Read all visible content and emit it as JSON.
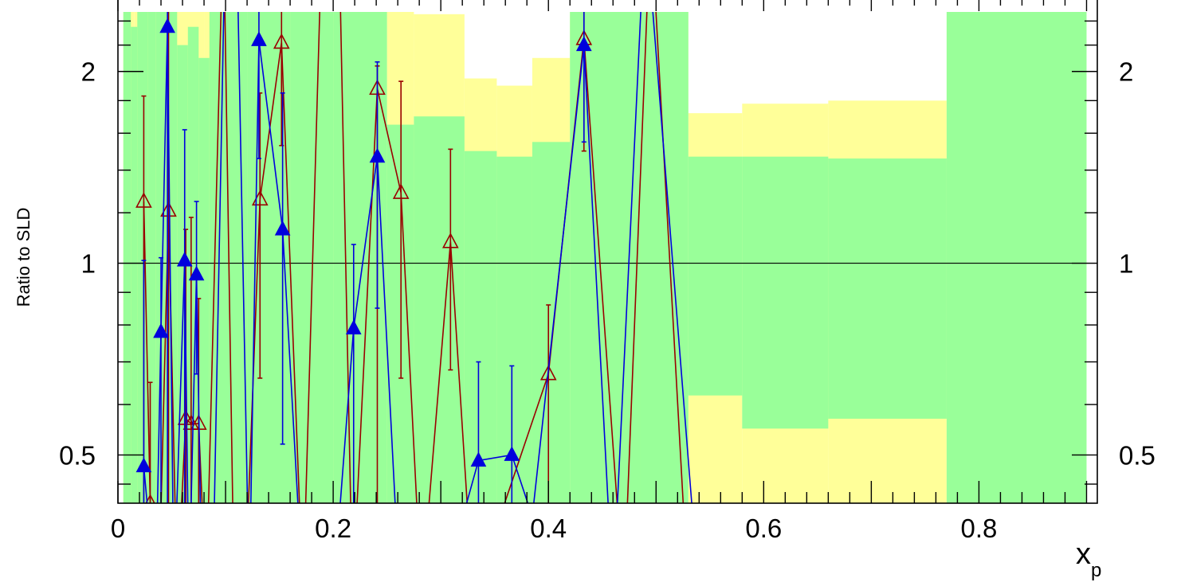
{
  "chart_data": {
    "type": "line",
    "title": "",
    "xlabel": "x",
    "xlabel_sub": "p",
    "ylabel": "Ratio to SLD",
    "xlim": [
      0,
      0.91
    ],
    "ylim": [
      0.42,
      2.48
    ],
    "yscale": "log",
    "x_ticks": [
      "0",
      "0.2",
      "0.4",
      "0.6",
      "0.8"
    ],
    "y_ticks": [
      "0.5",
      "1",
      "2"
    ],
    "reference_line": 1,
    "colors": {
      "band_outer": "#ffff99",
      "band_inner": "#99ff99",
      "series_filled": "#0000dd",
      "series_open": "#990000"
    },
    "bands": {
      "outer": [
        {
          "x0": 0.005,
          "x1": 0.015,
          "lo": 0.3,
          "hi": 3.2
        },
        {
          "x0": 0.015,
          "x1": 0.03,
          "lo": 0.3,
          "hi": 2.6
        },
        {
          "x0": 0.03,
          "x1": 0.05,
          "lo": 0.3,
          "hi": 3.2
        },
        {
          "x0": 0.05,
          "x1": 0.08,
          "lo": 0.3,
          "hi": 3.2
        },
        {
          "x0": 0.08,
          "x1": 0.12,
          "lo": 0.3,
          "hi": 3.2
        },
        {
          "x0": 0.12,
          "x1": 0.16,
          "lo": 0.3,
          "hi": 3.2
        },
        {
          "x0": 0.16,
          "x1": 0.2,
          "lo": 0.3,
          "hi": 3.2
        },
        {
          "x0": 0.2,
          "x1": 0.25,
          "lo": 0.3,
          "hi": 3.2
        },
        {
          "x0": 0.25,
          "x1": 0.275,
          "lo": 0.3,
          "hi": 2.7
        },
        {
          "x0": 0.275,
          "x1": 0.322,
          "lo": 0.3,
          "hi": 2.46
        },
        {
          "x0": 0.322,
          "x1": 0.352,
          "lo": 0.35,
          "hi": 1.95
        },
        {
          "x0": 0.352,
          "x1": 0.385,
          "lo": 0.34,
          "hi": 1.9
        },
        {
          "x0": 0.385,
          "x1": 0.42,
          "lo": 0.3,
          "hi": 2.1
        },
        {
          "x0": 0.42,
          "x1": 0.455,
          "lo": 0.3,
          "hi": 3.2
        },
        {
          "x0": 0.455,
          "x1": 0.485,
          "lo": 0.3,
          "hi": 3.2
        },
        {
          "x0": 0.485,
          "x1": 0.53,
          "lo": 0.3,
          "hi": 3.2
        },
        {
          "x0": 0.53,
          "x1": 0.58,
          "lo": 0.3,
          "hi": 1.72
        },
        {
          "x0": 0.58,
          "x1": 0.66,
          "lo": 0.3,
          "hi": 1.78
        },
        {
          "x0": 0.66,
          "x1": 0.77,
          "lo": 0.3,
          "hi": 1.8
        },
        {
          "x0": 0.77,
          "x1": 0.9,
          "lo": 0.3,
          "hi": 3.2
        }
      ],
      "inner": [
        {
          "x0": 0.005,
          "x1": 0.012,
          "lo": 0.3,
          "hi": 3.2
        },
        {
          "x0": 0.012,
          "x1": 0.018,
          "lo": 0.3,
          "hi": 2.35
        },
        {
          "x0": 0.018,
          "x1": 0.028,
          "lo": 0.3,
          "hi": 3.2
        },
        {
          "x0": 0.028,
          "x1": 0.035,
          "lo": 0.3,
          "hi": 2.5
        },
        {
          "x0": 0.035,
          "x1": 0.045,
          "lo": 0.3,
          "hi": 3.2
        },
        {
          "x0": 0.045,
          "x1": 0.055,
          "lo": 0.3,
          "hi": 3.2
        },
        {
          "x0": 0.055,
          "x1": 0.065,
          "lo": 0.3,
          "hi": 2.2
        },
        {
          "x0": 0.065,
          "x1": 0.075,
          "lo": 0.3,
          "hi": 2.35
        },
        {
          "x0": 0.075,
          "x1": 0.085,
          "lo": 0.3,
          "hi": 2.1
        },
        {
          "x0": 0.085,
          "x1": 0.12,
          "lo": 0.3,
          "hi": 3.2
        },
        {
          "x0": 0.12,
          "x1": 0.16,
          "lo": 0.3,
          "hi": 3.2
        },
        {
          "x0": 0.16,
          "x1": 0.2,
          "lo": 0.3,
          "hi": 3.2
        },
        {
          "x0": 0.2,
          "x1": 0.25,
          "lo": 0.3,
          "hi": 3.2
        },
        {
          "x0": 0.25,
          "x1": 0.275,
          "lo": 0.3,
          "hi": 1.65
        },
        {
          "x0": 0.275,
          "x1": 0.322,
          "lo": 0.3,
          "hi": 1.7
        },
        {
          "x0": 0.322,
          "x1": 0.352,
          "lo": 0.38,
          "hi": 1.5
        },
        {
          "x0": 0.352,
          "x1": 0.385,
          "lo": 0.39,
          "hi": 1.47
        },
        {
          "x0": 0.385,
          "x1": 0.42,
          "lo": 0.3,
          "hi": 1.55
        },
        {
          "x0": 0.42,
          "x1": 0.455,
          "lo": 0.3,
          "hi": 3.2
        },
        {
          "x0": 0.455,
          "x1": 0.485,
          "lo": 0.4,
          "hi": 3.2
        },
        {
          "x0": 0.485,
          "x1": 0.53,
          "lo": 0.3,
          "hi": 3.2
        },
        {
          "x0": 0.53,
          "x1": 0.58,
          "lo": 0.62,
          "hi": 1.47
        },
        {
          "x0": 0.58,
          "x1": 0.66,
          "lo": 0.55,
          "hi": 1.47
        },
        {
          "x0": 0.66,
          "x1": 0.77,
          "lo": 0.57,
          "hi": 1.46
        },
        {
          "x0": 0.77,
          "x1": 0.9,
          "lo": 0.3,
          "hi": 3.2
        }
      ]
    },
    "series": [
      {
        "marker": "filled-triangle",
        "points": [
          {
            "x": 0.024,
            "y": 0.48,
            "lo": 0.3,
            "hi": 1.01
          },
          {
            "x": 0.035,
            "y": 0.3
          },
          {
            "x": 0.04,
            "y": 0.78,
            "lo": 0.4,
            "hi": 1.02
          },
          {
            "x": 0.046,
            "y": 2.35,
            "lo": 0.3,
            "hi": 3.2
          },
          {
            "x": 0.052,
            "y": 0.3
          },
          {
            "x": 0.062,
            "y": 1.01,
            "lo": 0.4,
            "hi": 1.62
          },
          {
            "x": 0.066,
            "y": 0.3
          },
          {
            "x": 0.073,
            "y": 0.96,
            "lo": 0.67,
            "hi": 1.25
          },
          {
            "x": 0.078,
            "y": 0.3
          },
          {
            "x": 0.088,
            "y": 0.3
          },
          {
            "x": 0.1,
            "y": 3.5
          },
          {
            "x": 0.11,
            "y": 3.5
          },
          {
            "x": 0.122,
            "y": 0.3
          },
          {
            "x": 0.131,
            "y": 2.24,
            "lo": 1.46,
            "hi": 3.2
          },
          {
            "x": 0.153,
            "y": 1.13,
            "lo": 0.52,
            "hi": 1.85
          },
          {
            "x": 0.172,
            "y": 0.3
          },
          {
            "x": 0.2,
            "y": 0.3
          },
          {
            "x": 0.219,
            "y": 0.79,
            "lo": 0.3,
            "hi": 1.07
          },
          {
            "x": 0.241,
            "y": 1.47,
            "lo": 0.85,
            "hi": 2.07
          },
          {
            "x": 0.262,
            "y": 0.3
          },
          {
            "x": 0.3,
            "y": 0.3
          },
          {
            "x": 0.335,
            "y": 0.49,
            "lo": 0.3,
            "hi": 0.7
          },
          {
            "x": 0.366,
            "y": 0.5,
            "lo": 0.3,
            "hi": 0.69
          },
          {
            "x": 0.385,
            "y": 0.4
          },
          {
            "x": 0.433,
            "y": 2.2,
            "lo": 1.55,
            "hi": 3.2
          },
          {
            "x": 0.46,
            "y": 0.3
          },
          {
            "x": 0.49,
            "y": 3.5
          },
          {
            "x": 0.54,
            "y": 0.3
          }
        ]
      },
      {
        "marker": "open-triangle",
        "points": [
          {
            "x": 0.024,
            "y": 1.25,
            "lo": 0.3,
            "hi": 1.83
          },
          {
            "x": 0.03,
            "y": 0.42,
            "lo": 0.3,
            "hi": 0.65
          },
          {
            "x": 0.038,
            "y": 0.3
          },
          {
            "x": 0.047,
            "y": 1.21,
            "lo": 0.3,
            "hi": 3.2
          },
          {
            "x": 0.055,
            "y": 0.3
          },
          {
            "x": 0.063,
            "y": 0.57,
            "lo": 0.3,
            "hi": 1.13
          },
          {
            "x": 0.068,
            "y": 0.56,
            "lo": 0.3,
            "hi": 1.18
          },
          {
            "x": 0.075,
            "y": 0.56,
            "lo": 0.3,
            "hi": 0.88
          },
          {
            "x": 0.082,
            "y": 0.3
          },
          {
            "x": 0.098,
            "y": 3.5
          },
          {
            "x": 0.108,
            "y": 0.3
          },
          {
            "x": 0.118,
            "y": 0.3
          },
          {
            "x": 0.132,
            "y": 1.26,
            "lo": 0.66,
            "hi": 1.85
          },
          {
            "x": 0.152,
            "y": 2.22,
            "lo": 1.53,
            "hi": 3.2
          },
          {
            "x": 0.172,
            "y": 0.3
          },
          {
            "x": 0.19,
            "y": 3.5
          },
          {
            "x": 0.205,
            "y": 3.5
          },
          {
            "x": 0.218,
            "y": 0.3
          },
          {
            "x": 0.241,
            "y": 1.88,
            "lo": 0.3,
            "hi": 2.04
          },
          {
            "x": 0.263,
            "y": 1.29,
            "lo": 0.66,
            "hi": 1.93
          },
          {
            "x": 0.282,
            "y": 0.3
          },
          {
            "x": 0.309,
            "y": 1.08,
            "lo": 0.68,
            "hi": 1.51
          },
          {
            "x": 0.33,
            "y": 0.3
          },
          {
            "x": 0.4,
            "y": 0.67,
            "lo": 0.4,
            "hi": 0.86
          },
          {
            "x": 0.433,
            "y": 2.25,
            "lo": 1.5,
            "hi": 3.2
          },
          {
            "x": 0.47,
            "y": 0.3
          },
          {
            "x": 0.495,
            "y": 3.5
          },
          {
            "x": 0.53,
            "y": 0.3
          }
        ]
      }
    ]
  }
}
